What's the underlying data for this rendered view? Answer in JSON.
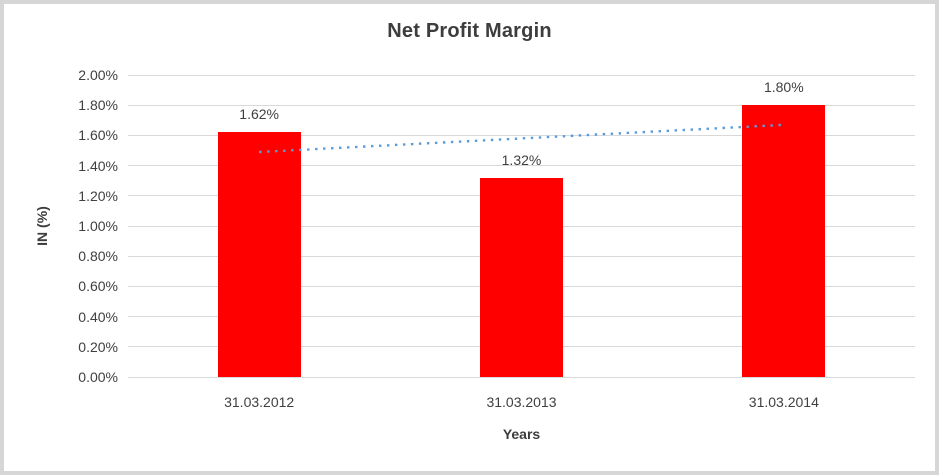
{
  "chart_data": {
    "type": "bar",
    "title": "Net Profit Margin",
    "xlabel": "Years",
    "ylabel": "IN (%)",
    "categories": [
      "31.03.2012",
      "31.03.2013",
      "31.03.2014"
    ],
    "values": [
      1.62,
      1.32,
      1.8
    ],
    "value_labels": [
      "1.62%",
      "1.32%",
      "1.80%"
    ],
    "ylim": [
      0,
      2.0
    ],
    "ytick_step": 0.2,
    "ytick_labels": [
      "0.00%",
      "0.20%",
      "0.40%",
      "0.60%",
      "0.80%",
      "1.00%",
      "1.20%",
      "1.40%",
      "1.60%",
      "1.80%",
      "2.00%"
    ],
    "grid": true,
    "legend": "none",
    "colors": {
      "bar": "#FF0000",
      "trendline": "#5B9BD5",
      "gridline": "#D9D9D9",
      "text": "#404040",
      "frame_border": "#D6D6D6",
      "background": "#FFFFFF"
    },
    "trendline": {
      "type": "linear",
      "style": "dotted",
      "color": "#5B9BD5",
      "x_category_indices": [
        0,
        2
      ],
      "y_values": [
        1.49,
        1.67
      ]
    }
  }
}
